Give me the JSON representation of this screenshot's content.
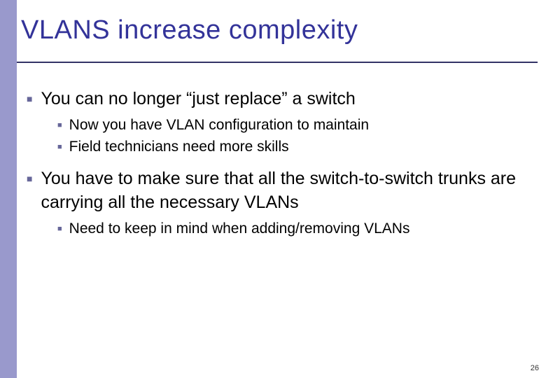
{
  "colors": {
    "sidebar": "#9999cc",
    "title": "#333399",
    "underline": "#333366",
    "bullet_marker": "#666699",
    "body_text": "#000000",
    "background": "#ffffff"
  },
  "title": "VLANS increase complexity",
  "bullets": {
    "b1": "You can no longer “just replace” a switch",
    "b1_1": "Now you have VLAN configuration to maintain",
    "b1_2": "Field technicians need more skills",
    "b2": "You have to make sure that all the switch-to-switch trunks are carrying all the necessary VLANs",
    "b2_1": "Need to keep in mind when adding/removing VLANs"
  },
  "page_number": "26",
  "typography": {
    "title_fontsize": 38,
    "l1_fontsize": 25,
    "l2_fontsize": 21,
    "pagenum_fontsize": 11
  }
}
